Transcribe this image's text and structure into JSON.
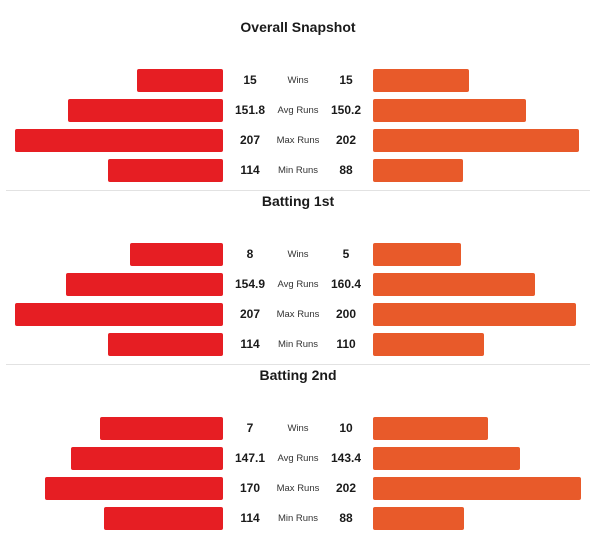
{
  "colors": {
    "team1": "#e61e23",
    "team2": "#e85a2a"
  },
  "chart_data": [
    {
      "type": "bar",
      "title": "Overall Snapshot",
      "categories": [
        "Wins",
        "Avg Runs",
        "Max Runs",
        "Min Runs"
      ],
      "series": [
        {
          "values": [
            "15",
            "151.8",
            "207",
            "114"
          ],
          "bar_fraction": [
            0.413,
            0.747,
            1.0,
            0.553
          ]
        },
        {
          "values": [
            "15",
            "150.2",
            "202",
            "88"
          ],
          "bar_fraction": [
            0.463,
            0.736,
            0.99,
            0.431
          ]
        }
      ]
    },
    {
      "type": "bar",
      "title": "Batting 1st",
      "categories": [
        "Wins",
        "Avg Runs",
        "Max Runs",
        "Min Runs"
      ],
      "series": [
        {
          "values": [
            "8",
            "154.9",
            "207",
            "114"
          ],
          "bar_fraction": [
            0.447,
            0.755,
            1.0,
            0.553
          ]
        },
        {
          "values": [
            "5",
            "160.4",
            "200",
            "110"
          ],
          "bar_fraction": [
            0.424,
            0.779,
            0.976,
            0.533
          ]
        }
      ]
    },
    {
      "type": "bar",
      "title": "Batting 2nd",
      "categories": [
        "Wins",
        "Avg Runs",
        "Max Runs",
        "Min Runs"
      ],
      "series": [
        {
          "values": [
            "7",
            "147.1",
            "170",
            "114"
          ],
          "bar_fraction": [
            0.592,
            0.733,
            0.854,
            0.573
          ]
        },
        {
          "values": [
            "10",
            "143.4",
            "202",
            "88"
          ],
          "bar_fraction": [
            0.552,
            0.705,
            1.0,
            0.437
          ]
        }
      ]
    }
  ]
}
